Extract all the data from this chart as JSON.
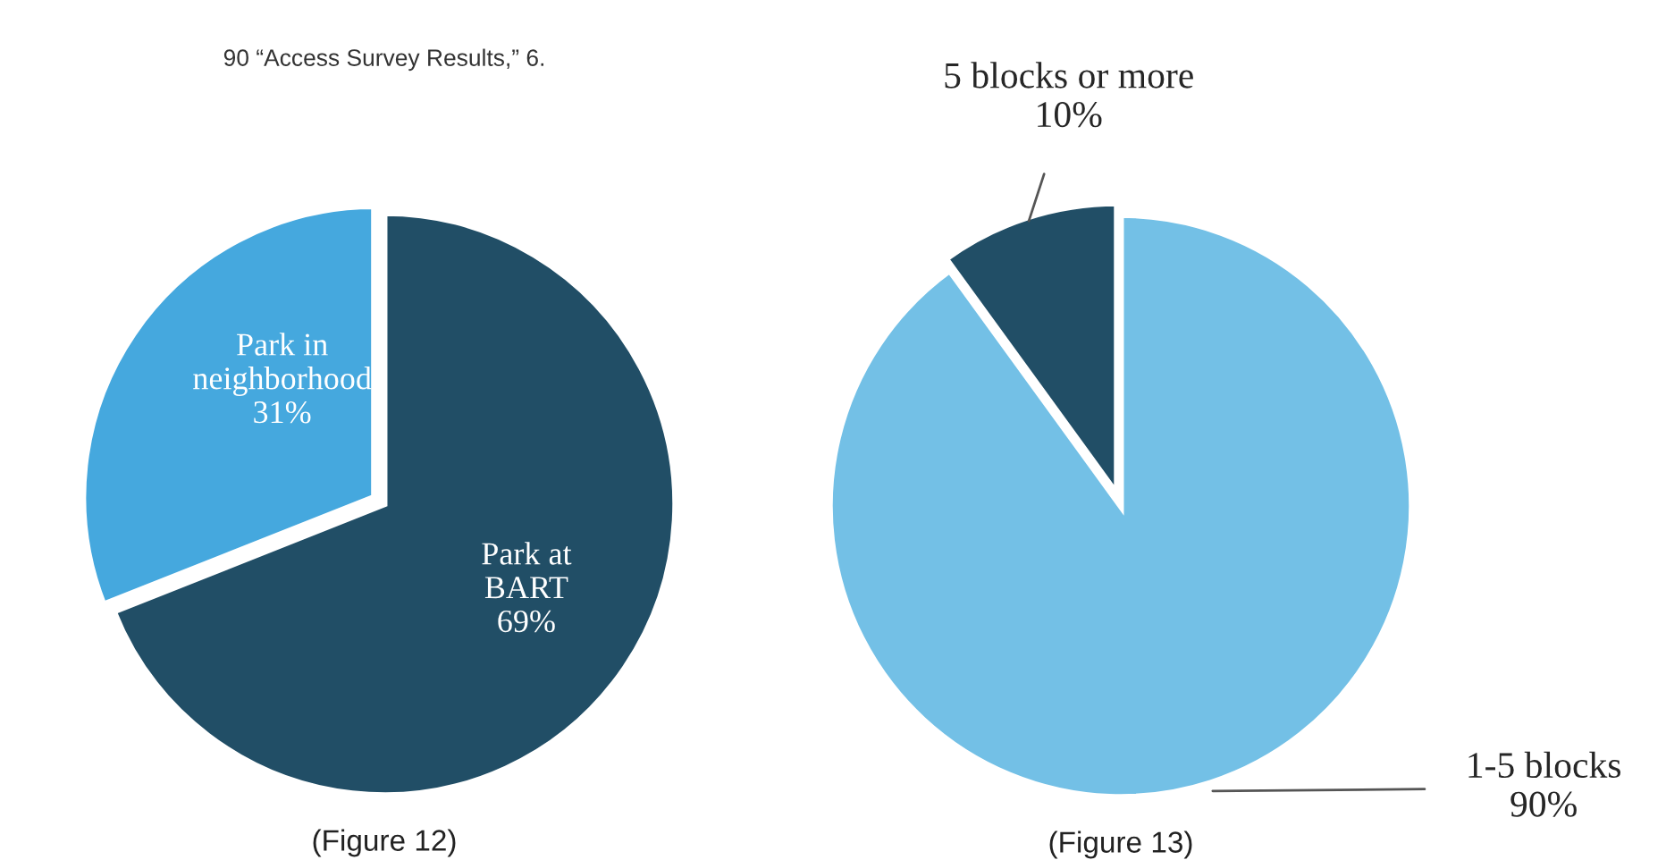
{
  "chart_data": [
    {
      "type": "pie",
      "categories": [
        "Park in\nneighborhood",
        "Park at\nBART"
      ],
      "values": [
        31,
        69
      ],
      "value_labels": [
        "31%",
        "69%"
      ],
      "colors": [
        "#45a8de",
        "#214e66"
      ],
      "annotations": [
        "90 “Access Survey Results,” 6.",
        "(Figure 12)"
      ]
    },
    {
      "type": "pie",
      "categories": [
        "5 blocks or more",
        "1-5 blocks"
      ],
      "values": [
        10,
        90
      ],
      "value_labels": [
        "10%",
        "90%"
      ],
      "colors": [
        "#214e66",
        "#73c0e6"
      ],
      "annotations": [
        "(Figure 13)"
      ]
    }
  ]
}
